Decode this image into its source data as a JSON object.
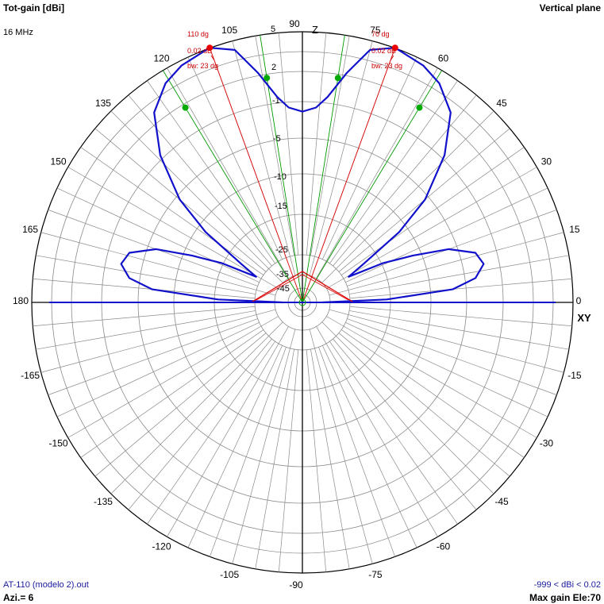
{
  "header": {
    "title_left": "Tot-gain [dBi]",
    "frequency": "16 MHz",
    "title_right": "Vertical plane"
  },
  "footer": {
    "file_name": "AT-110 (modelo 2).out",
    "azimuth": "Azi.= 6",
    "range": "-999 < dBi < 0.02",
    "max_gain": "Max gain Ele:70"
  },
  "axis_labels": {
    "z": "Z",
    "xy": "XY"
  },
  "chart_data": {
    "type": "polar",
    "title": "Tot-gain [dBi]",
    "plane": "Vertical plane",
    "frequency": "16 MHz",
    "angle_tick_labels": [
      "0",
      "15",
      "30",
      "45",
      "60",
      "75",
      "90",
      "105",
      "120",
      "135",
      "150",
      "165",
      "180",
      "-165",
      "-150",
      "-135",
      "-120",
      "-105",
      "-90",
      "-75",
      "-60",
      "-45",
      "-30",
      "-15"
    ],
    "radial_scale": {
      "ticks": [
        5,
        2,
        -1,
        -5,
        -10,
        -15,
        -25,
        -35,
        -45
      ],
      "tick_labels": [
        "5",
        "2",
        "-1",
        "-5",
        "-10",
        "-15",
        "-25",
        "-35",
        "-45"
      ]
    },
    "series": [
      {
        "color": "#1111cc",
        "points": [
          {
            "angle": 0,
            "gain": -45
          },
          {
            "angle": 2,
            "gain": -20
          },
          {
            "angle": 5,
            "gain": -10
          },
          {
            "angle": 8,
            "gain": -7.5
          },
          {
            "angle": 12,
            "gain": -6.5
          },
          {
            "angle": 16,
            "gain": -7
          },
          {
            "angle": 20,
            "gain": -9.5
          },
          {
            "angle": 23,
            "gain": -14
          },
          {
            "angle": 26,
            "gain": -19
          },
          {
            "angle": 29,
            "gain": -28
          },
          {
            "angle": 32,
            "gain": -23
          },
          {
            "angle": 36,
            "gain": -14
          },
          {
            "angle": 40,
            "gain": -9
          },
          {
            "angle": 46,
            "gain": -4.8
          },
          {
            "angle": 52,
            "gain": -2
          },
          {
            "angle": 58,
            "gain": -0.8
          },
          {
            "angle": 63,
            "gain": -0.3
          },
          {
            "angle": 70,
            "gain": 0.02
          },
          {
            "angle": 75,
            "gain": -0.6
          },
          {
            "angle": 79,
            "gain": -2.5
          },
          {
            "angle": 83,
            "gain": -4.6
          },
          {
            "angle": 86,
            "gain": -5.6
          },
          {
            "angle": 90,
            "gain": -6
          },
          {
            "angle": 94,
            "gain": -5.6
          },
          {
            "angle": 97,
            "gain": -4.6
          },
          {
            "angle": 101,
            "gain": -2.5
          },
          {
            "angle": 105,
            "gain": -0.6
          },
          {
            "angle": 110,
            "gain": 0.02
          },
          {
            "angle": 117,
            "gain": -0.3
          },
          {
            "angle": 122,
            "gain": -0.8
          },
          {
            "angle": 128,
            "gain": -2
          },
          {
            "angle": 134,
            "gain": -4.8
          },
          {
            "angle": 140,
            "gain": -9
          },
          {
            "angle": 144,
            "gain": -14
          },
          {
            "angle": 148,
            "gain": -23
          },
          {
            "angle": 151,
            "gain": -28
          },
          {
            "angle": 154,
            "gain": -19
          },
          {
            "angle": 157,
            "gain": -14
          },
          {
            "angle": 160,
            "gain": -9.5
          },
          {
            "angle": 164,
            "gain": -7
          },
          {
            "angle": 168,
            "gain": -6.5
          },
          {
            "angle": 172,
            "gain": -7.5
          },
          {
            "angle": 175,
            "gain": -10
          },
          {
            "angle": 178,
            "gain": -20
          },
          {
            "angle": 180,
            "gain": -45
          }
        ]
      }
    ],
    "max_gain_markers": [
      {
        "angle": 70,
        "label_angle": "70 dg",
        "label_gain": "0.02 dB",
        "label_bw": "bw: 23 dg"
      },
      {
        "angle": 110,
        "label_angle": "110 dg",
        "label_gain": "0.02 dB",
        "label_bw": "bw: 23 dg"
      }
    ],
    "beamwidth_points": [
      {
        "angle": 59,
        "gain": -3
      },
      {
        "angle": 81,
        "gain": -3
      },
      {
        "angle": 99,
        "gain": -3
      },
      {
        "angle": 121,
        "gain": -3
      }
    ],
    "colors": {
      "pattern": "#1111cc",
      "max_gain": "#dd0000",
      "beamwidth": "#009900",
      "grid": "#888888",
      "axes": "#000000"
    }
  }
}
